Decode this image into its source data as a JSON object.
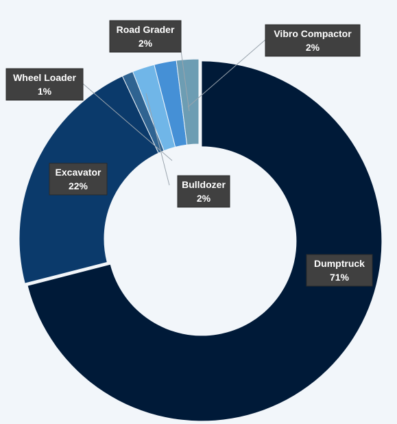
{
  "chart_data": {
    "type": "pie",
    "variant": "doughnut",
    "title": "",
    "legend": "none",
    "data_labels": "category and percentage in dark callout boxes with leader lines",
    "slices": [
      {
        "name": "Dumptruck",
        "value": 71,
        "label": "71%",
        "color": "#001a38"
      },
      {
        "name": "Excavator",
        "value": 22,
        "label": "22%",
        "color": "#0b3a6b"
      },
      {
        "name": "Wheel Loader",
        "value": 1,
        "label": "1%",
        "color": "#2f6391"
      },
      {
        "name": "Bulldozer",
        "value": 2,
        "label": "2%",
        "color": "#70b6e8"
      },
      {
        "name": "Road Grader",
        "value": 2,
        "label": "2%",
        "color": "#4590d6"
      },
      {
        "name": "Vibro Compactor",
        "value": 2,
        "label": "2%",
        "color": "#6d9db3"
      }
    ]
  }
}
